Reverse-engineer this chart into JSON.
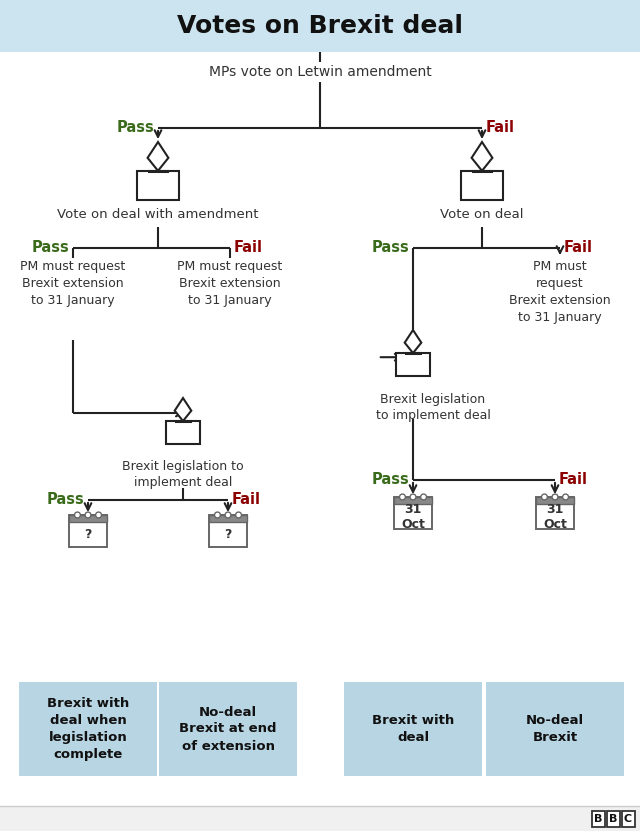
{
  "title": "Votes on Brexit deal",
  "title_bg": "#cce4ef",
  "bg_color": "#ffffff",
  "pass_color": "#3a6b1a",
  "fail_color": "#8b0000",
  "box_color": "#b8d5e3",
  "line_color": "#222222",
  "text_color": "#333333",
  "nodes": {
    "root_label": "MPs vote on Letwin amendment",
    "left_vote_label": "Vote on deal with amendment",
    "right_vote_label": "Vote on deal",
    "ll_text": "PM must request\nBrexit extension\nto 31 January",
    "lr_text": "PM must request\nBrexit extension\nto 31 January",
    "rr_text": "PM must\nrequest\nBrexit extension\nto 31 January",
    "ll_leg_label": "Brexit legislation to\nimplement deal",
    "rl_leg_label": "Brexit legislation\nto implement deal",
    "outcome_ll_pass": "Brexit with\ndeal when\nlegislation\ncomplete",
    "outcome_ll_fail": "No-deal\nBrexit at end\nof extension",
    "outcome_rl_pass": "Brexit with\ndeal",
    "outcome_rl_fail": "No-deal\nBrexit",
    "cal_lp": "?",
    "cal_lf": "?",
    "cal_rp": "31\nOct",
    "cal_rf": "31\nOct"
  }
}
